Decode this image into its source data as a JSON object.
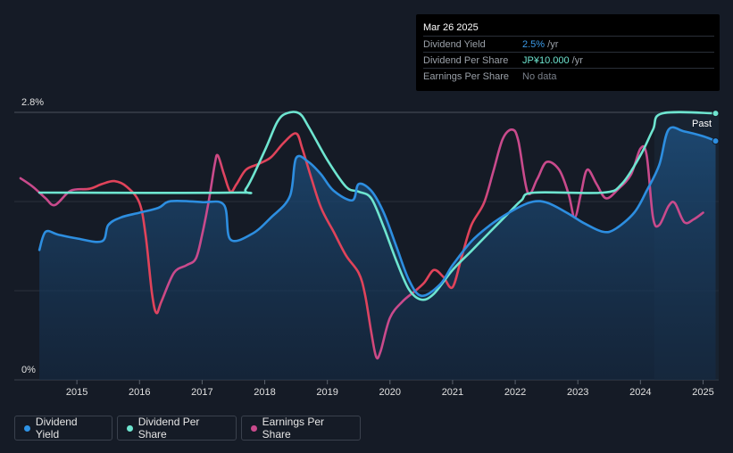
{
  "tooltip": {
    "date": "Mar 26 2025",
    "rows": [
      {
        "label": "Dividend Yield",
        "value": "2.5%",
        "unit": " /yr",
        "color": "#3b9ae8"
      },
      {
        "label": "Dividend Per Share",
        "value": "JP¥10.000",
        "unit": " /yr",
        "color": "#6ee5d0"
      },
      {
        "label": "Earnings Per Share",
        "value": "No data",
        "unit": "",
        "color": "#7a808a"
      }
    ]
  },
  "past_label": "Past",
  "chart_data": {
    "type": "line",
    "ylabel": "",
    "ylim": [
      0,
      2.8
    ],
    "ytick_labels": [
      "2.8%",
      "0%"
    ],
    "yticks": [
      2.8,
      0
    ],
    "xlim": [
      2014.0,
      2025.25
    ],
    "xticks": [
      2015,
      2016,
      2017,
      2018,
      2019,
      2020,
      2021,
      2022,
      2023,
      2024,
      2025
    ],
    "xtick_labels": [
      "2015",
      "2016",
      "2017",
      "2018",
      "2019",
      "2020",
      "2021",
      "2022",
      "2023",
      "2024",
      "2025"
    ],
    "grid": true,
    "forecast_start": 2024.22,
    "series": [
      {
        "name": "Dividend Yield",
        "color": "#2d8ee0",
        "area": true,
        "points": [
          [
            2014.4,
            1.36
          ],
          [
            2014.5,
            1.55
          ],
          [
            2014.7,
            1.52
          ],
          [
            2015.0,
            1.48
          ],
          [
            2015.4,
            1.45
          ],
          [
            2015.5,
            1.62
          ],
          [
            2015.7,
            1.7
          ],
          [
            2016.0,
            1.75
          ],
          [
            2016.3,
            1.8
          ],
          [
            2016.5,
            1.87
          ],
          [
            2017.0,
            1.86
          ],
          [
            2017.35,
            1.83
          ],
          [
            2017.45,
            1.47
          ],
          [
            2017.8,
            1.53
          ],
          [
            2018.1,
            1.7
          ],
          [
            2018.4,
            1.92
          ],
          [
            2018.5,
            2.32
          ],
          [
            2018.7,
            2.28
          ],
          [
            2018.9,
            2.15
          ],
          [
            2019.1,
            1.98
          ],
          [
            2019.4,
            1.88
          ],
          [
            2019.5,
            2.05
          ],
          [
            2019.7,
            1.98
          ],
          [
            2019.9,
            1.75
          ],
          [
            2020.1,
            1.4
          ],
          [
            2020.3,
            1.05
          ],
          [
            2020.5,
            0.88
          ],
          [
            2020.8,
            1.0
          ],
          [
            2021.0,
            1.2
          ],
          [
            2021.3,
            1.45
          ],
          [
            2021.6,
            1.62
          ],
          [
            2021.9,
            1.75
          ],
          [
            2022.2,
            1.85
          ],
          [
            2022.4,
            1.87
          ],
          [
            2022.6,
            1.83
          ],
          [
            2022.9,
            1.72
          ],
          [
            2023.1,
            1.64
          ],
          [
            2023.4,
            1.55
          ],
          [
            2023.6,
            1.58
          ],
          [
            2023.9,
            1.75
          ],
          [
            2024.1,
            1.98
          ],
          [
            2024.3,
            2.25
          ],
          [
            2024.45,
            2.62
          ],
          [
            2024.7,
            2.6
          ],
          [
            2025.0,
            2.55
          ],
          [
            2025.2,
            2.5
          ]
        ]
      },
      {
        "name": "Dividend Per Share",
        "color": "#6ee5d0",
        "area": false,
        "points": [
          [
            2014.4,
            1.96
          ],
          [
            2017.5,
            1.96
          ],
          [
            2017.7,
            2.0
          ],
          [
            2018.0,
            2.4
          ],
          [
            2018.2,
            2.7
          ],
          [
            2018.35,
            2.79
          ],
          [
            2018.55,
            2.79
          ],
          [
            2018.7,
            2.65
          ],
          [
            2019.0,
            2.3
          ],
          [
            2019.3,
            2.02
          ],
          [
            2019.5,
            1.97
          ],
          [
            2019.7,
            1.9
          ],
          [
            2019.9,
            1.6
          ],
          [
            2020.1,
            1.25
          ],
          [
            2020.3,
            0.95
          ],
          [
            2020.5,
            0.84
          ],
          [
            2020.7,
            0.9
          ],
          [
            2021.0,
            1.15
          ],
          [
            2021.3,
            1.35
          ],
          [
            2021.6,
            1.55
          ],
          [
            2021.9,
            1.75
          ],
          [
            2022.1,
            1.88
          ],
          [
            2022.3,
            1.96
          ],
          [
            2023.4,
            1.96
          ],
          [
            2023.7,
            2.05
          ],
          [
            2024.0,
            2.35
          ],
          [
            2024.2,
            2.62
          ],
          [
            2024.35,
            2.79
          ],
          [
            2025.2,
            2.79
          ]
        ]
      },
      {
        "name": "Earnings Per Share",
        "color": "#e0435a",
        "color_alt": "#c94a8c",
        "area": false,
        "points": [
          [
            2014.1,
            2.11
          ],
          [
            2014.3,
            2.02
          ],
          [
            2014.5,
            1.9
          ],
          [
            2014.65,
            1.83
          ],
          [
            2014.9,
            1.98
          ],
          [
            2015.2,
            2.0
          ],
          [
            2015.4,
            2.05
          ],
          [
            2015.6,
            2.08
          ],
          [
            2015.8,
            2.02
          ],
          [
            2016.0,
            1.85
          ],
          [
            2016.1,
            1.5
          ],
          [
            2016.2,
            0.9
          ],
          [
            2016.27,
            0.7
          ],
          [
            2016.35,
            0.82
          ],
          [
            2016.55,
            1.12
          ],
          [
            2016.75,
            1.2
          ],
          [
            2016.9,
            1.27
          ],
          [
            2017.0,
            1.52
          ],
          [
            2017.1,
            1.85
          ],
          [
            2017.2,
            2.25
          ],
          [
            2017.25,
            2.35
          ],
          [
            2017.35,
            2.15
          ],
          [
            2017.45,
            1.97
          ],
          [
            2017.55,
            2.05
          ],
          [
            2017.7,
            2.2
          ],
          [
            2017.9,
            2.26
          ],
          [
            2018.1,
            2.33
          ],
          [
            2018.3,
            2.48
          ],
          [
            2018.5,
            2.58
          ],
          [
            2018.6,
            2.42
          ],
          [
            2018.75,
            2.1
          ],
          [
            2018.9,
            1.8
          ],
          [
            2019.1,
            1.55
          ],
          [
            2019.3,
            1.3
          ],
          [
            2019.5,
            1.12
          ],
          [
            2019.6,
            0.9
          ],
          [
            2019.7,
            0.5
          ],
          [
            2019.78,
            0.24
          ],
          [
            2019.85,
            0.3
          ],
          [
            2020.0,
            0.65
          ],
          [
            2020.2,
            0.82
          ],
          [
            2020.4,
            0.93
          ],
          [
            2020.55,
            1.02
          ],
          [
            2020.7,
            1.15
          ],
          [
            2020.85,
            1.08
          ],
          [
            2021.0,
            0.97
          ],
          [
            2021.15,
            1.3
          ],
          [
            2021.3,
            1.62
          ],
          [
            2021.5,
            1.85
          ],
          [
            2021.65,
            2.18
          ],
          [
            2021.8,
            2.52
          ],
          [
            2021.95,
            2.62
          ],
          [
            2022.05,
            2.5
          ],
          [
            2022.2,
            1.96
          ],
          [
            2022.35,
            2.1
          ],
          [
            2022.5,
            2.28
          ],
          [
            2022.7,
            2.2
          ],
          [
            2022.85,
            1.95
          ],
          [
            2022.95,
            1.7
          ],
          [
            2023.05,
            1.95
          ],
          [
            2023.15,
            2.2
          ],
          [
            2023.3,
            2.05
          ],
          [
            2023.45,
            1.9
          ],
          [
            2023.65,
            2.0
          ],
          [
            2023.85,
            2.15
          ],
          [
            2024.0,
            2.42
          ],
          [
            2024.1,
            2.35
          ],
          [
            2024.2,
            1.7
          ],
          [
            2024.3,
            1.62
          ],
          [
            2024.45,
            1.82
          ],
          [
            2024.55,
            1.85
          ],
          [
            2024.7,
            1.65
          ],
          [
            2024.85,
            1.68
          ],
          [
            2025.0,
            1.75
          ]
        ]
      }
    ],
    "legend": [
      "Dividend Yield",
      "Dividend Per Share",
      "Earnings Per Share"
    ],
    "legend_position": "bottom-left"
  },
  "legend": [
    {
      "label": "Dividend Yield",
      "color": "#2e93e6"
    },
    {
      "label": "Dividend Per Share",
      "color": "#6ee5d0"
    },
    {
      "label": "Earnings Per Share",
      "color": "#c94a8c"
    }
  ]
}
